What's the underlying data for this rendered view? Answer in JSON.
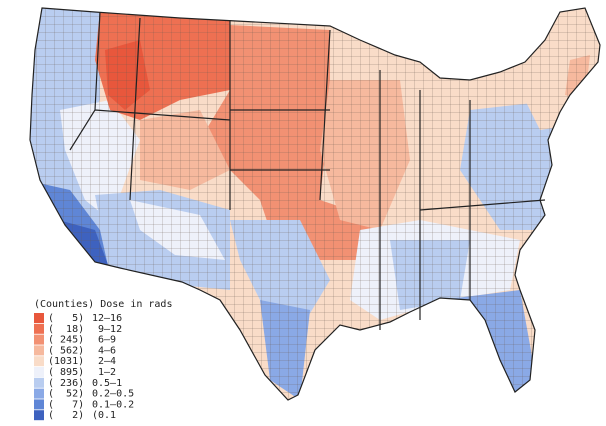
{
  "legend": {
    "title": "(Counties) Dose in rads",
    "items": [
      {
        "count": "(   5)",
        "range": "12–16",
        "color": "#e8573c"
      },
      {
        "count": "(  18)",
        "range": " 9–12",
        "color": "#ee7052"
      },
      {
        "count": "( 245)",
        "range": " 6–9",
        "color": "#f29173"
      },
      {
        "count": "( 562)",
        "range": " 4–6",
        "color": "#f6b99e"
      },
      {
        "count": "(1031)",
        "range": " 2–4",
        "color": "#f9dcc8"
      },
      {
        "count": "( 895)",
        "range": " 1–2",
        "color": "#eef1fa"
      },
      {
        "count": "( 236)",
        "range": "0.5–1",
        "color": "#b9cdf0"
      },
      {
        "count": "(  52)",
        "range": "0.2–0.5",
        "color": "#8aa9e6"
      },
      {
        "count": "(   7)",
        "range": "0.1–0.2",
        "color": "#5f86d6"
      },
      {
        "count": "(   2)",
        "range": "(0.1",
        "color": "#3e62bf"
      }
    ]
  }
}
